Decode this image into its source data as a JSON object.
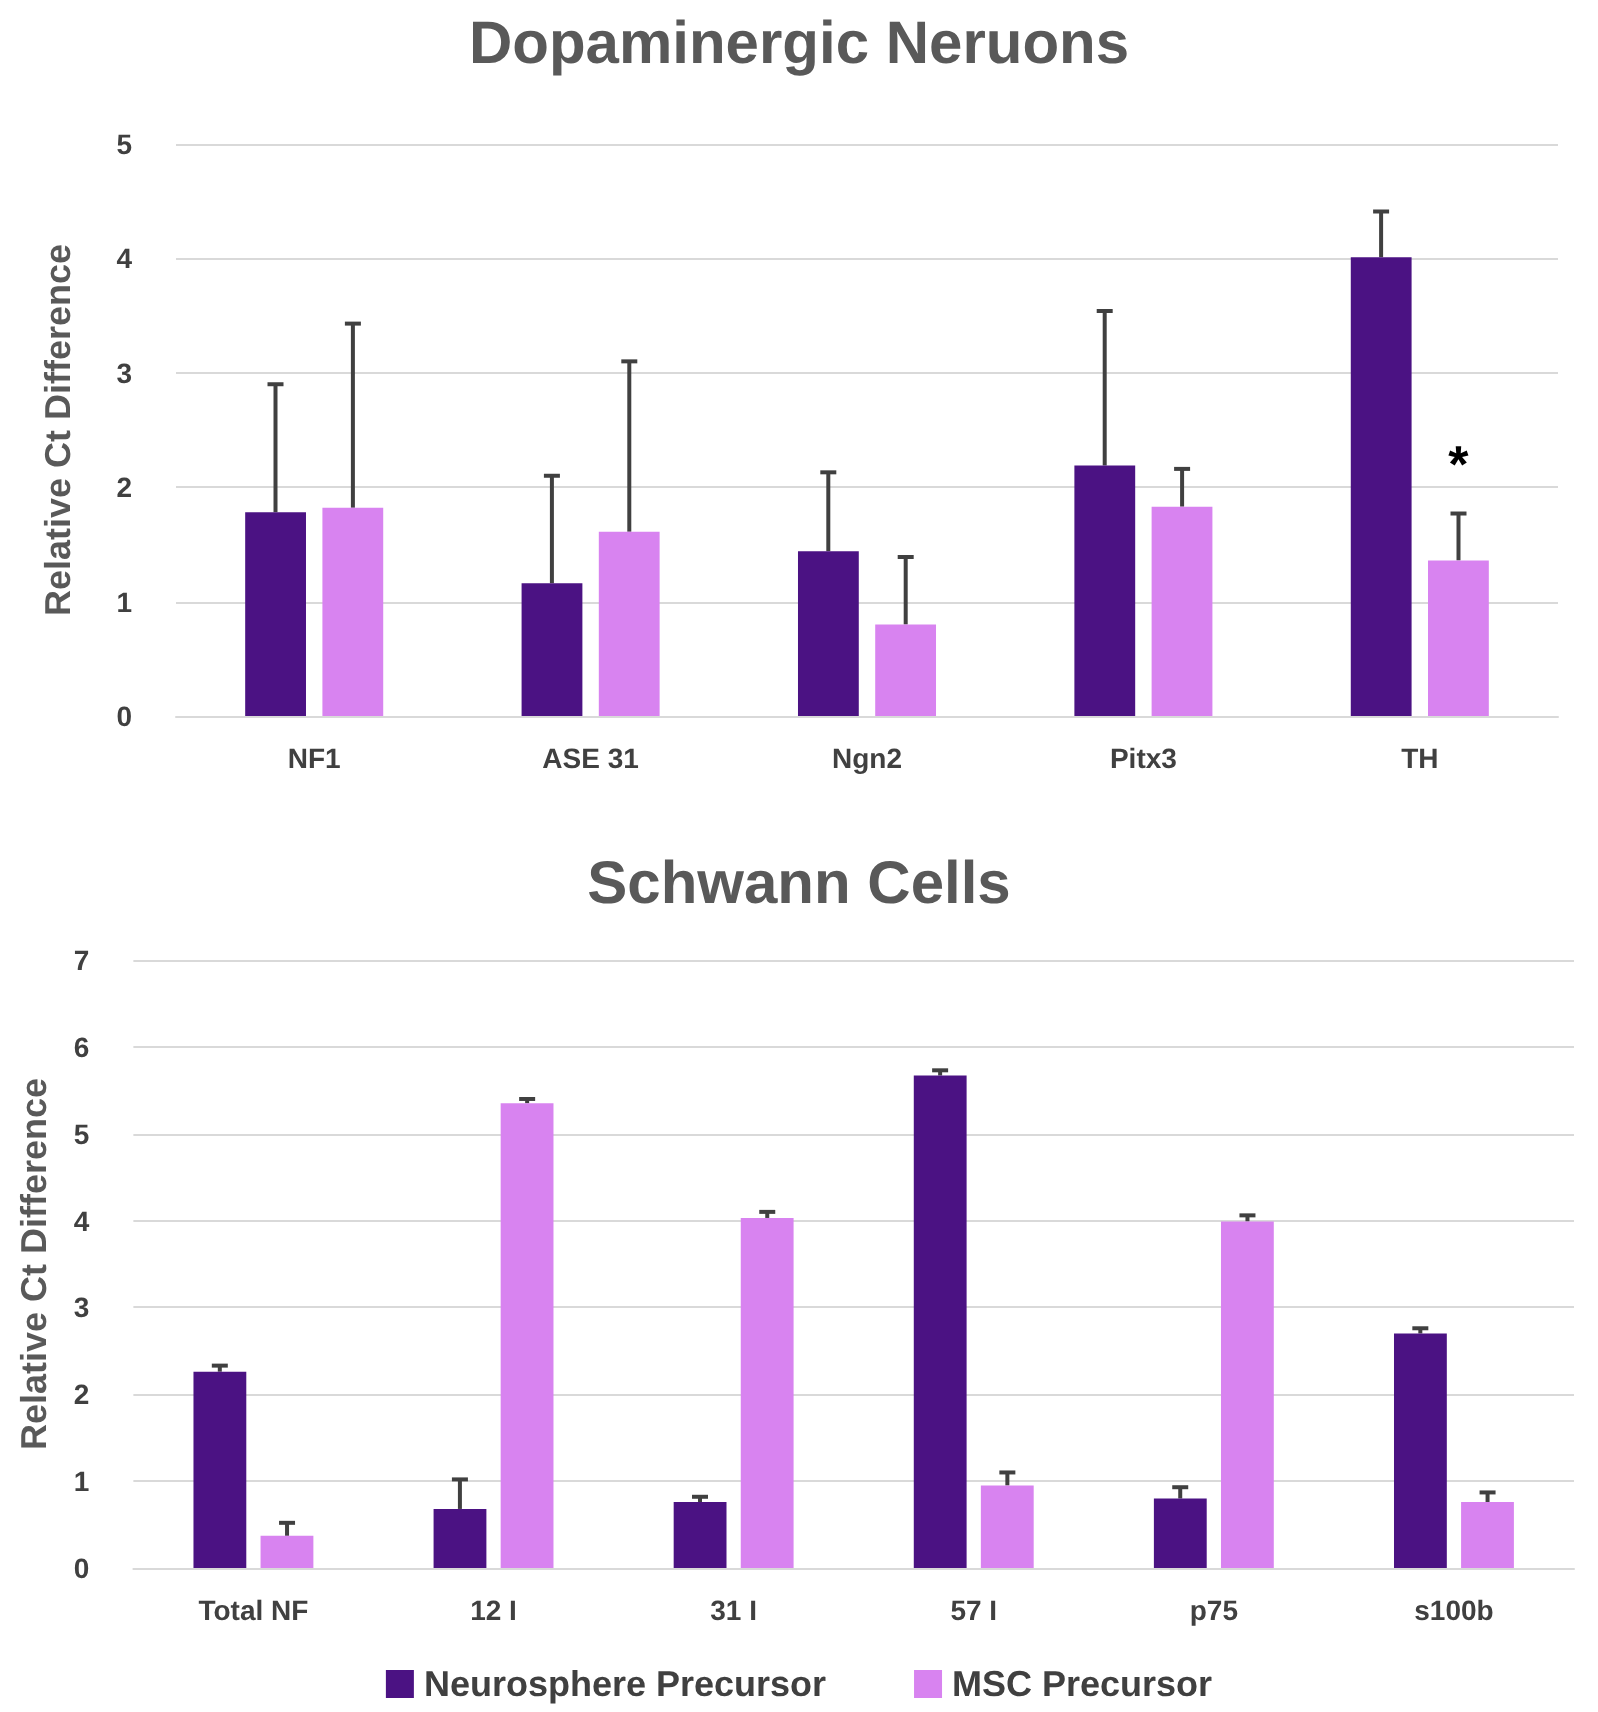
{
  "chart_data": [
    {
      "type": "bar",
      "title": "Dopaminergic Neruons",
      "ylabel": "Relative Ct Difference",
      "categories": [
        "NF1",
        "ASE 31",
        "Ngn2",
        "Pitx3",
        "TH"
      ],
      "series": [
        {
          "color": "#4b1283",
          "values": [
            1.78,
            1.16,
            1.44,
            2.19,
            4.01
          ],
          "errors": [
            [
              1.78,
              2.9
            ],
            [
              1.16,
              2.1
            ],
            [
              1.44,
              2.13
            ],
            [
              2.19,
              3.54
            ],
            [
              4.01,
              4.41
            ]
          ]
        },
        {
          "color": "#d883f0",
          "values": [
            1.82,
            1.61,
            0.8,
            1.83,
            1.36
          ],
          "errors": [
            [
              1.82,
              3.43
            ],
            [
              1.61,
              3.1
            ],
            [
              0.8,
              1.39
            ],
            [
              1.83,
              2.16
            ],
            [
              1.36,
              1.77
            ]
          ]
        }
      ],
      "ylim": [
        0,
        5
      ],
      "yticks": [
        0,
        1,
        2,
        3,
        4,
        5
      ],
      "grid": "y",
      "legend": false,
      "annotations": [
        {
          "text": "*",
          "x": "TH",
          "y": 2.2
        }
      ]
    },
    {
      "type": "bar",
      "title": "Schwann Cells",
      "ylabel": "Relative Ct Difference",
      "categories": [
        "Total NF",
        "12 I",
        "31 I",
        "57 I",
        "p75",
        "s100b"
      ],
      "series": [
        {
          "name": "Neurosphere Precursor",
          "color": "#4b1283",
          "values": [
            2.26,
            0.68,
            0.76,
            5.67,
            0.8,
            2.7
          ],
          "errors": [
            [
              2.26,
              2.33
            ],
            [
              0.68,
              1.02
            ],
            [
              0.76,
              0.82
            ],
            [
              5.67,
              5.73
            ],
            [
              0.8,
              0.93
            ],
            [
              2.7,
              2.76
            ]
          ]
        },
        {
          "name": "MSC Precursor",
          "color": "#d883f0",
          "values": [
            0.37,
            5.35,
            4.03,
            0.95,
            3.99,
            0.76
          ],
          "errors": [
            [
              0.37,
              0.52
            ],
            [
              5.35,
              5.4
            ],
            [
              4.03,
              4.1
            ],
            [
              0.95,
              1.1
            ],
            [
              3.99,
              4.06
            ],
            [
              0.76,
              0.87
            ]
          ]
        }
      ],
      "ylim": [
        0,
        7
      ],
      "yticks": [
        0,
        1,
        2,
        3,
        4,
        5,
        6,
        7
      ],
      "grid": "y",
      "legend": "bottom"
    }
  ]
}
